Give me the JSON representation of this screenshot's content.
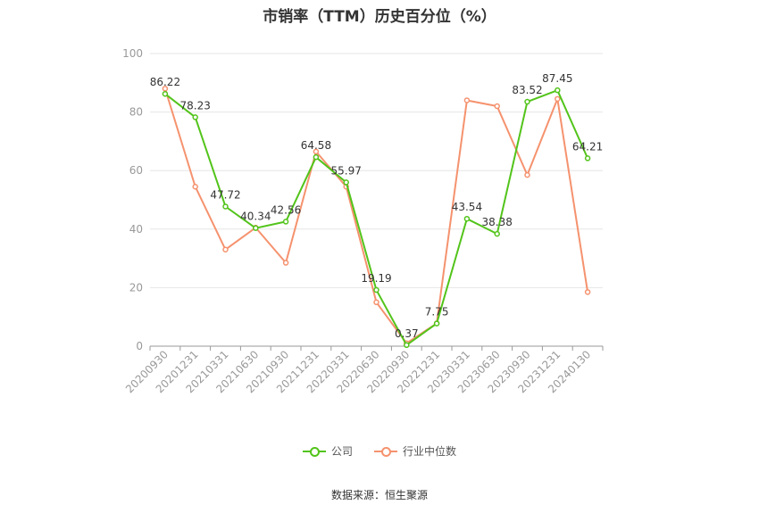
{
  "chart_data": {
    "type": "line",
    "title": "市销率（TTM）历史百分位（%）",
    "categories": [
      "20200930",
      "20201231",
      "20210331",
      "20210630",
      "20210930",
      "20211231",
      "20220331",
      "20220630",
      "20220930",
      "20221231",
      "20230331",
      "20230630",
      "20230930",
      "20231231",
      "20240130"
    ],
    "series": [
      {
        "name": "公司",
        "color": "#52c41a",
        "values": [
          86.22,
          78.23,
          47.72,
          40.34,
          42.56,
          64.58,
          55.97,
          19.19,
          0.37,
          7.75,
          43.54,
          38.38,
          83.52,
          87.45,
          64.21
        ],
        "labels": [
          "86.22",
          "78.23",
          "47.72",
          "40.34",
          "42.56",
          "64.58",
          "55.97",
          "19.19",
          "0.37",
          "7.75",
          "43.54",
          "38.38",
          "83.52",
          "87.45",
          "64.21"
        ]
      },
      {
        "name": "行业中位数",
        "color": "#f5926e",
        "values": [
          88,
          54.5,
          33,
          40.5,
          28.5,
          66.5,
          54.5,
          15,
          1,
          7.8,
          84,
          82,
          58.5,
          84.5,
          18.5
        ]
      }
    ],
    "ylim": [
      0,
      100
    ],
    "yticks": [
      0,
      20,
      40,
      60,
      80,
      100
    ],
    "grid": true,
    "legend_position": "bottom"
  },
  "source": "数据来源：恒生聚源"
}
